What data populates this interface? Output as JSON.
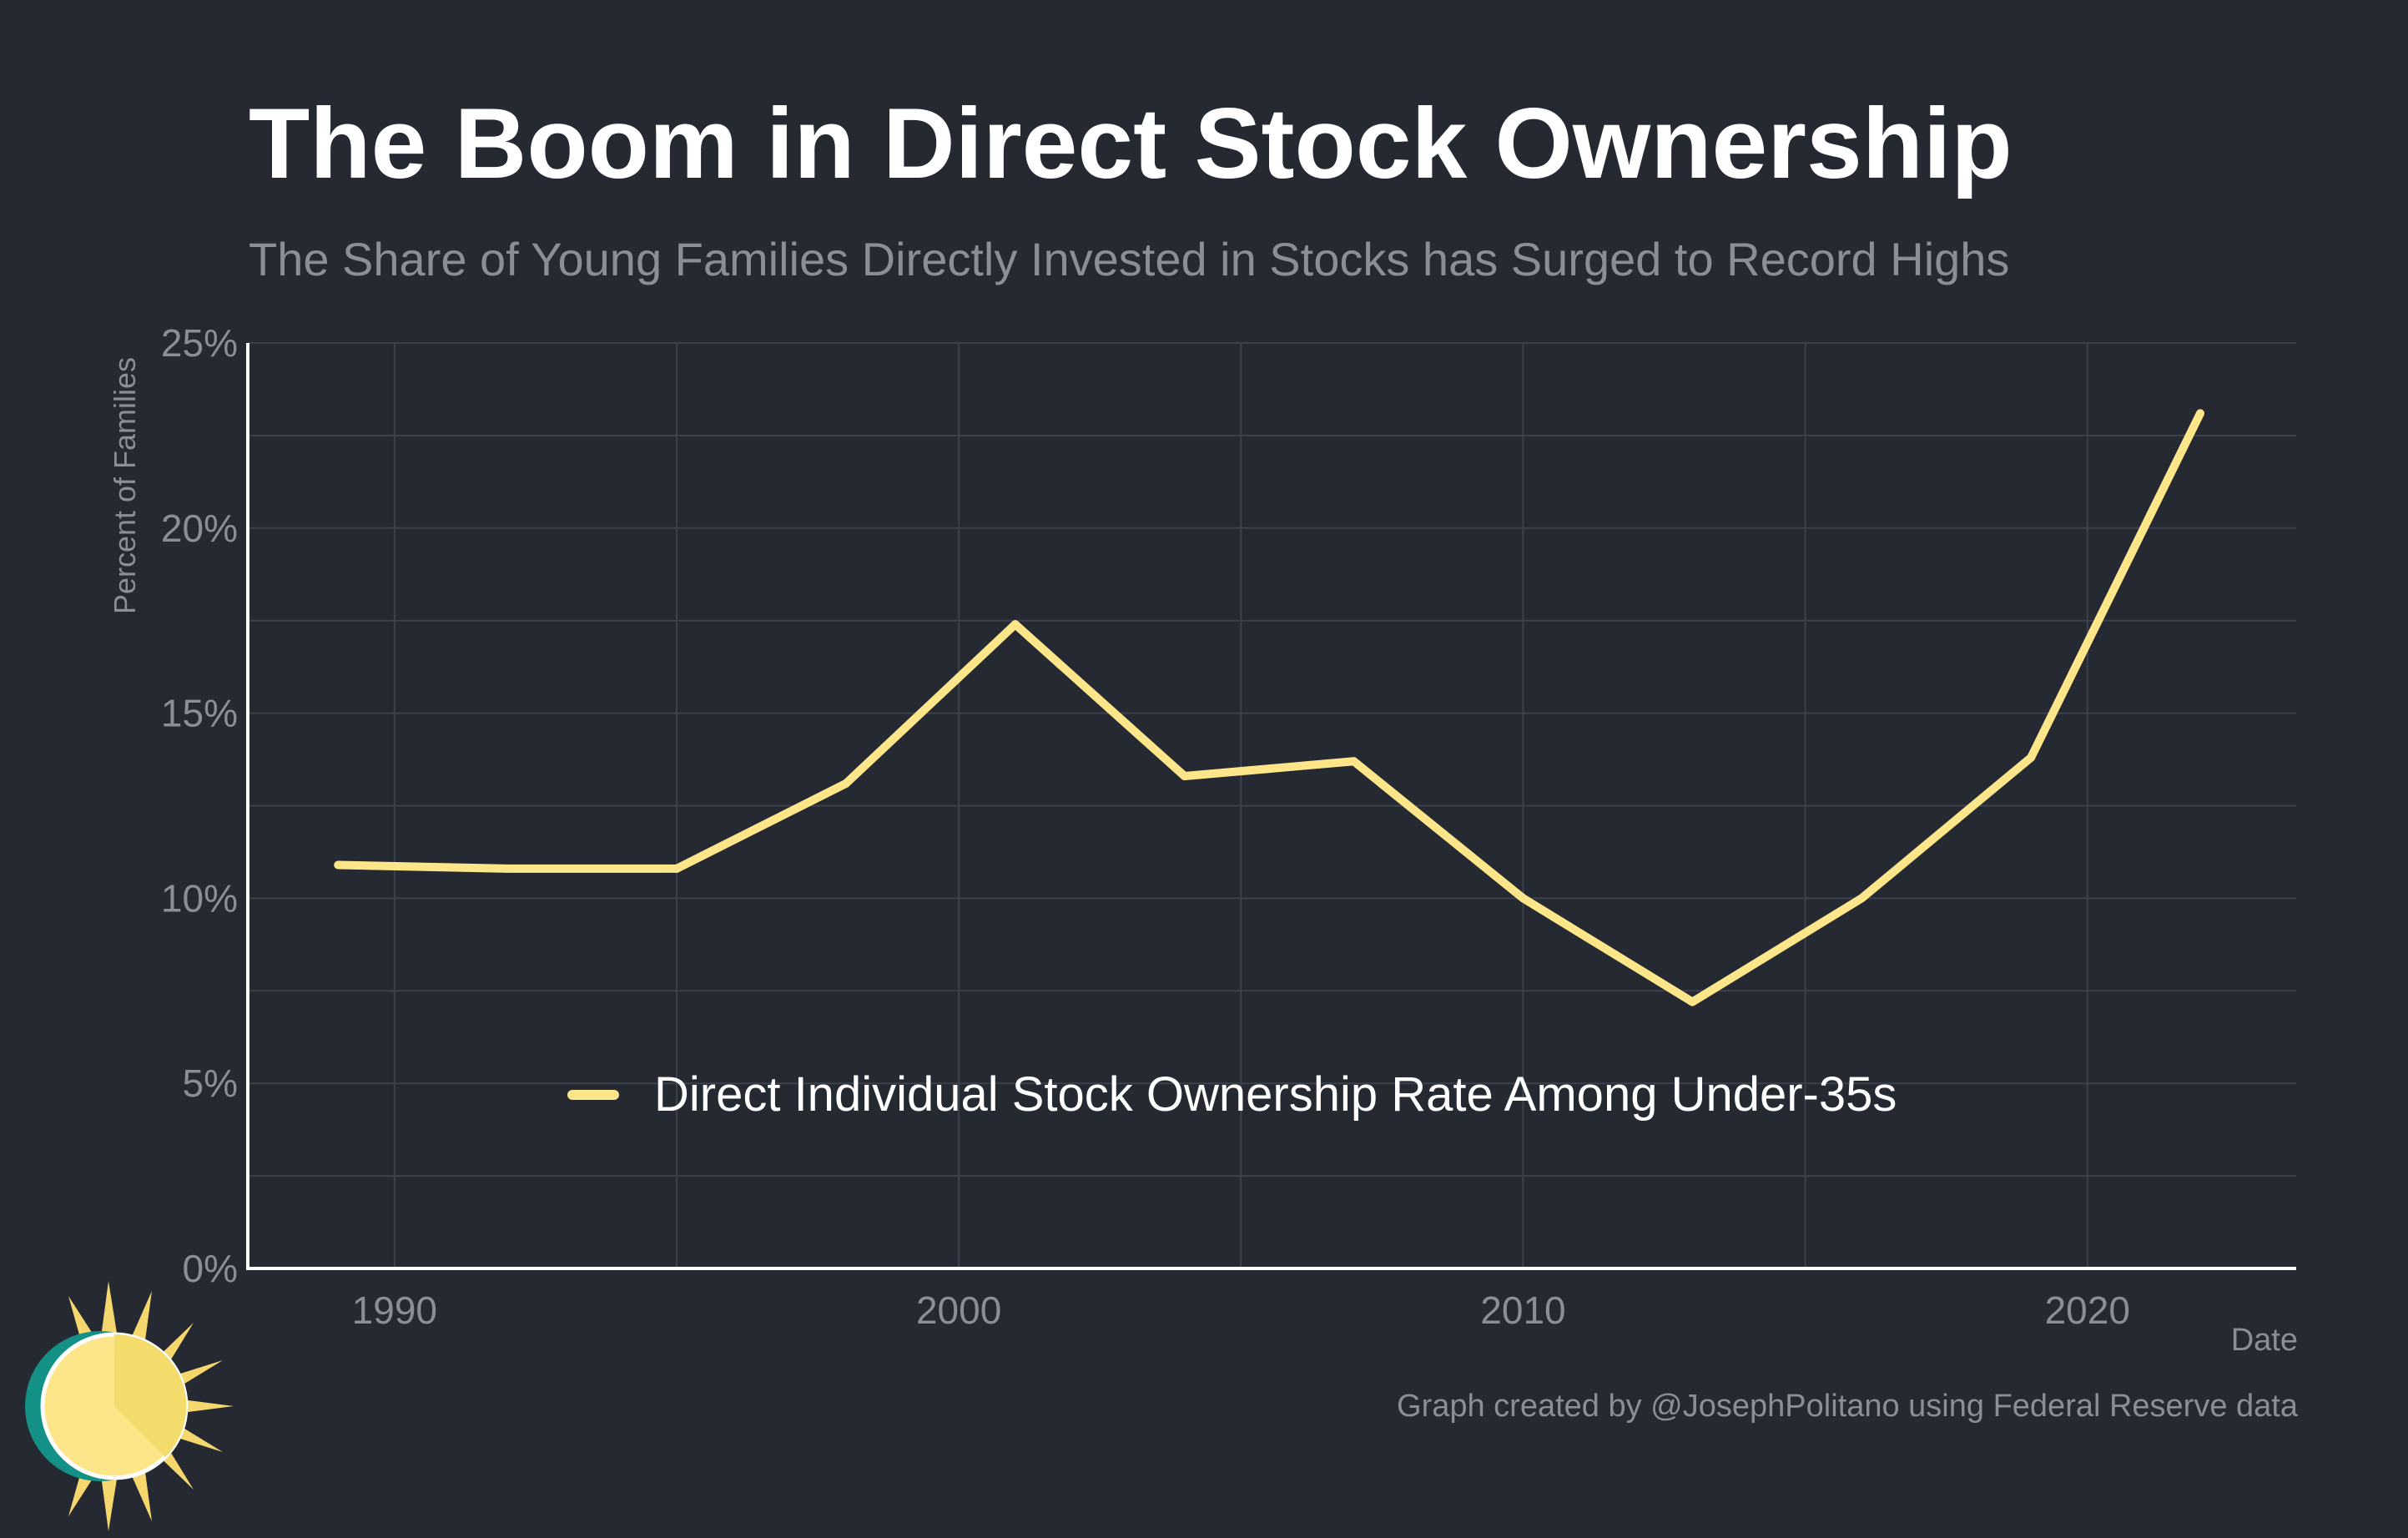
{
  "title": "The Boom in Direct Stock Ownership",
  "subtitle": "The Share of Young Families Directly Invested in Stocks has Surged to Record Highs",
  "credit": "Graph created by @JosephPolitano using Federal Reserve data",
  "colors": {
    "background": "#252932",
    "line": "#fde68a",
    "grid": "#3c414b",
    "axis": "#ffffff",
    "muted_text": "#8a8e97"
  },
  "logo": {
    "icon": "sun-logo-icon"
  },
  "chart_data": {
    "type": "line",
    "title": "The Boom in Direct Stock Ownership",
    "xlabel": "Date",
    "ylabel": "Percent of Families",
    "x": [
      1989,
      1992,
      1995,
      1998,
      2001,
      2004,
      2007,
      2010,
      2013,
      2016,
      2019,
      2022
    ],
    "series": [
      {
        "name": "Direct Individual Stock Ownership Rate Among Under-35s",
        "values": [
          10.9,
          10.8,
          10.8,
          13.1,
          17.4,
          13.3,
          13.7,
          10.0,
          7.2,
          10.0,
          13.8,
          23.1
        ]
      }
    ],
    "xlim": [
      1987.4,
      2023.7
    ],
    "ylim": [
      0,
      25
    ],
    "x_ticks": [
      1990,
      2000,
      2010,
      2020
    ],
    "x_tick_labels": [
      "1990",
      "2000",
      "2010",
      "2020"
    ],
    "y_ticks": [
      0,
      5,
      10,
      15,
      20,
      25
    ],
    "y_tick_labels": [
      "0%",
      "5%",
      "10%",
      "15%",
      "20%",
      "25%"
    ],
    "grid": true,
    "legend_position": "bottom-center"
  }
}
